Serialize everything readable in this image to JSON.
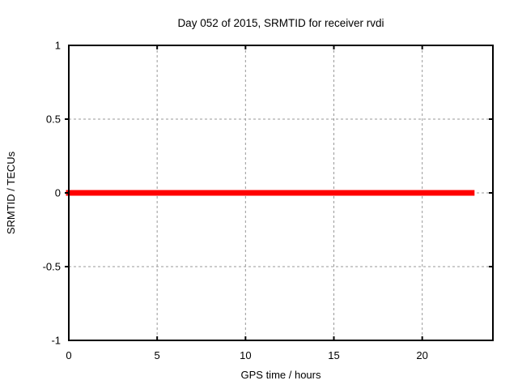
{
  "figure": {
    "background": "#ffffff"
  },
  "chart_data": {
    "type": "line",
    "title": "Day 052 of 2015, SRMTID for receiver rvdi",
    "xlabel": "GPS time / hours",
    "ylabel": "SRMTID / TECUs",
    "xlim": [
      0,
      24
    ],
    "ylim": [
      -1,
      1
    ],
    "xticks": [
      0,
      5,
      10,
      15,
      20
    ],
    "xtick_labels": [
      "0",
      "5",
      "10",
      "15",
      "20"
    ],
    "yticks": [
      -1,
      -0.5,
      0,
      0.5,
      1
    ],
    "ytick_labels": [
      "-1",
      "-0.5",
      "0",
      "0.5",
      "1"
    ],
    "grid": true,
    "grid_style": "dashed",
    "legend": "none",
    "series": [
      {
        "name": "SRMTID",
        "color": "#ff0000",
        "line_width": 7,
        "x": [
          0,
          22.8
        ],
        "y": [
          0,
          0
        ]
      }
    ],
    "colors": {
      "frame": "#000000",
      "grid": "#999999",
      "text": "#000000",
      "accent": "#ff0000"
    }
  }
}
